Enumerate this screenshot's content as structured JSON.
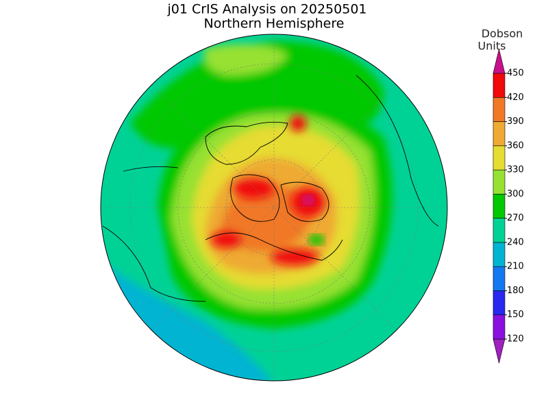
{
  "header": {
    "title": "j01 CrIS Analysis on 20250501",
    "subtitle": "Northern Hemisphere"
  },
  "colorbar": {
    "label_line1": "Dobson",
    "label_line2": "Units",
    "ticks": [
      120,
      150,
      180,
      210,
      240,
      270,
      300,
      330,
      360,
      390,
      420,
      450
    ],
    "colors": [
      "#a020c0",
      "#8a10e0",
      "#2828f0",
      "#1478f0",
      "#00b4d2",
      "#00d296",
      "#00c800",
      "#96e132",
      "#e6dc32",
      "#eeaa32",
      "#f07828",
      "#f00a0a",
      "#c8108c"
    ]
  }
}
